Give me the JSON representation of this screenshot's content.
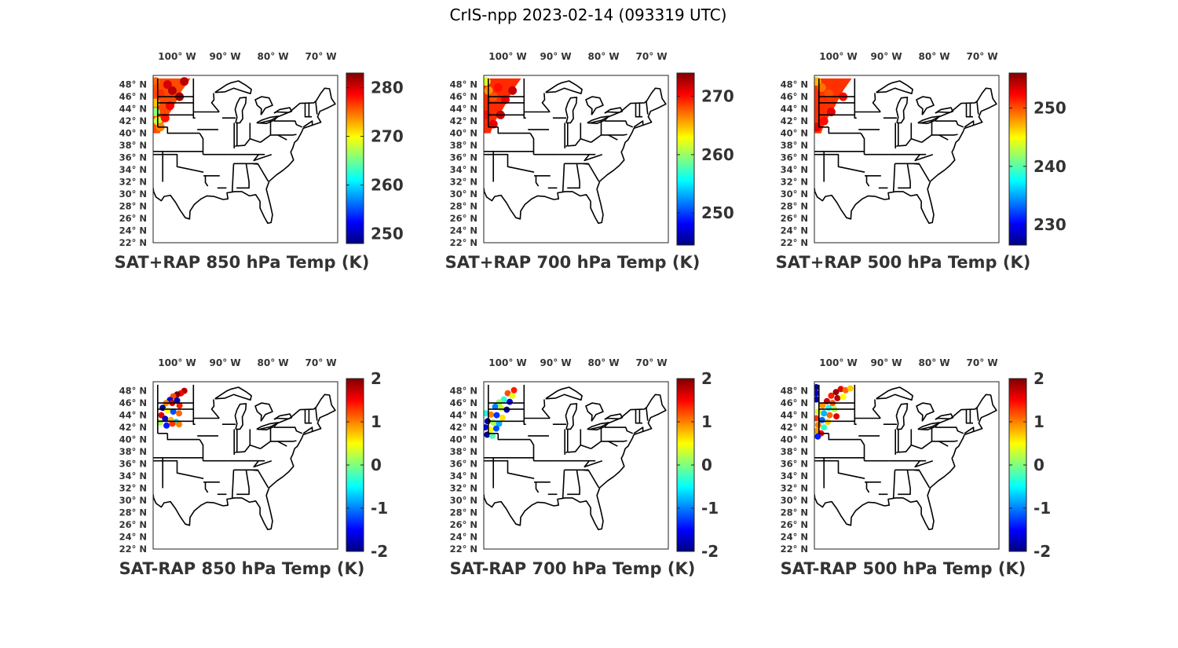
{
  "figure": {
    "title": "CrIS-npp 2023-02-14 (093319 UTC)"
  },
  "chart_data": [
    {
      "type": "scatter",
      "title": "SAT+RAP 850 hPa Temp (K)",
      "x_ticks": [
        "100° W",
        "90° W",
        "80° W",
        "70° W"
      ],
      "y_ticks": [
        "48° N",
        "46° N",
        "44° N",
        "42° N",
        "40° N",
        "38° N",
        "36° N",
        "34° N",
        "32° N",
        "30° N",
        "28° N",
        "26° N",
        "24° N",
        "22° N"
      ],
      "colorbar": {
        "range": [
          248,
          283
        ],
        "ticks": [
          250,
          260,
          270,
          280
        ]
      },
      "colormap": "jet",
      "data_region": {
        "lon": [
          -105,
          -96
        ],
        "lat": [
          40,
          49
        ]
      },
      "observations": [
        {
          "lon": -104.5,
          "lat": 48.5,
          "value": 275
        },
        {
          "lon": -104,
          "lat": 47.5,
          "value": 276
        },
        {
          "lon": -103.5,
          "lat": 46.5,
          "value": 277
        },
        {
          "lon": -104.5,
          "lat": 45,
          "value": 272
        },
        {
          "lon": -104.5,
          "lat": 43.5,
          "value": 266
        },
        {
          "lon": -104,
          "lat": 42,
          "value": 268
        },
        {
          "lon": -103.5,
          "lat": 41,
          "value": 274
        },
        {
          "lon": -102,
          "lat": 48,
          "value": 280
        },
        {
          "lon": -101,
          "lat": 47,
          "value": 281
        },
        {
          "lon": -99.5,
          "lat": 46,
          "value": 282
        },
        {
          "lon": -98.5,
          "lat": 48.5,
          "value": 281
        },
        {
          "lon": -101.5,
          "lat": 44.5,
          "value": 279
        },
        {
          "lon": -102.5,
          "lat": 42.5,
          "value": 278
        }
      ]
    },
    {
      "type": "scatter",
      "title": "SAT+RAP 700 hPa Temp (K)",
      "x_ticks": [
        "100° W",
        "90° W",
        "80° W",
        "70° W"
      ],
      "y_ticks": [
        "48° N",
        "46° N",
        "44° N",
        "42° N",
        "40° N",
        "38° N",
        "36° N",
        "34° N",
        "32° N",
        "30° N",
        "28° N",
        "26° N",
        "24° N",
        "22° N"
      ],
      "colorbar": {
        "range": [
          244.5,
          274
        ],
        "ticks": [
          250,
          260,
          270
        ]
      },
      "colormap": "jet",
      "data_region": {
        "lon": [
          -105,
          -96
        ],
        "lat": [
          40,
          49
        ]
      },
      "observations": [
        {
          "lon": -104.5,
          "lat": 48.5,
          "value": 262
        },
        {
          "lon": -104,
          "lat": 47,
          "value": 266
        },
        {
          "lon": -103,
          "lat": 46,
          "value": 268
        },
        {
          "lon": -102,
          "lat": 47.5,
          "value": 270
        },
        {
          "lon": -100.5,
          "lat": 45.5,
          "value": 271
        },
        {
          "lon": -99,
          "lat": 47,
          "value": 272
        },
        {
          "lon": -104.5,
          "lat": 43,
          "value": 270
        },
        {
          "lon": -103,
          "lat": 41.5,
          "value": 271
        },
        {
          "lon": -101.5,
          "lat": 43,
          "value": 272
        }
      ]
    },
    {
      "type": "scatter",
      "title": "SAT+RAP 500 hPa Temp (K)",
      "x_ticks": [
        "100° W",
        "90° W",
        "80° W",
        "70° W"
      ],
      "y_ticks": [
        "48° N",
        "46° N",
        "44° N",
        "42° N",
        "40° N",
        "38° N",
        "36° N",
        "34° N",
        "32° N",
        "30° N",
        "28° N",
        "26° N",
        "24° N",
        "22° N"
      ],
      "colorbar": {
        "range": [
          226.5,
          256
        ],
        "ticks": [
          230,
          240,
          250
        ]
      },
      "colormap": "jet",
      "data_region": {
        "lon": [
          -105,
          -96
        ],
        "lat": [
          40,
          49
        ]
      },
      "observations": [
        {
          "lon": -104.5,
          "lat": 48.5,
          "value": 247
        },
        {
          "lon": -103.5,
          "lat": 47.5,
          "value": 249
        },
        {
          "lon": -102,
          "lat": 46.5,
          "value": 250
        },
        {
          "lon": -100.5,
          "lat": 47.5,
          "value": 251
        },
        {
          "lon": -99,
          "lat": 46,
          "value": 252
        },
        {
          "lon": -104,
          "lat": 44,
          "value": 251
        },
        {
          "lon": -103,
          "lat": 42,
          "value": 252
        },
        {
          "lon": -101.5,
          "lat": 43.5,
          "value": 253
        },
        {
          "lon": -104.5,
          "lat": 41,
          "value": 253
        }
      ]
    },
    {
      "type": "scatter",
      "title": "SAT-RAP 850 hPa Temp (K)",
      "x_ticks": [
        "100° W",
        "90° W",
        "80° W",
        "70° W"
      ],
      "y_ticks": [
        "48° N",
        "46° N",
        "44° N",
        "42° N",
        "40° N",
        "38° N",
        "36° N",
        "34° N",
        "32° N",
        "30° N",
        "28° N",
        "26° N",
        "24° N",
        "22° N"
      ],
      "colorbar": {
        "range": [
          -2,
          2
        ],
        "ticks": [
          -2,
          -1,
          0,
          1,
          2
        ]
      },
      "colormap": "jet",
      "observations": [
        {
          "lon": -98.5,
          "lat": 48,
          "value": 1.8
        },
        {
          "lon": -99.2,
          "lat": 47.6,
          "value": 1.5
        },
        {
          "lon": -100,
          "lat": 47.4,
          "value": 2.0
        },
        {
          "lon": -100.8,
          "lat": 47.1,
          "value": 1.2
        },
        {
          "lon": -101.5,
          "lat": 46.5,
          "value": -1.6
        },
        {
          "lon": -102.3,
          "lat": 46,
          "value": 1.0
        },
        {
          "lon": -101,
          "lat": 46,
          "value": 1.7
        },
        {
          "lon": -100,
          "lat": 46.4,
          "value": -1.8
        },
        {
          "lon": -99.5,
          "lat": 45.6,
          "value": 1.4
        },
        {
          "lon": -103,
          "lat": 45.2,
          "value": -1.9
        },
        {
          "lon": -102,
          "lat": 44.8,
          "value": 0.5
        },
        {
          "lon": -100.8,
          "lat": 44.6,
          "value": -1.2
        },
        {
          "lon": -99.6,
          "lat": 44.3,
          "value": 1.1
        },
        {
          "lon": -103.3,
          "lat": 44,
          "value": 1.6
        },
        {
          "lon": -102.5,
          "lat": 43.4,
          "value": -1.7
        },
        {
          "lon": -101.3,
          "lat": 43.2,
          "value": 0.8
        },
        {
          "lon": -100.2,
          "lat": 42.9,
          "value": -0.6
        },
        {
          "lon": -102.2,
          "lat": 42.3,
          "value": -1.4
        },
        {
          "lon": -101,
          "lat": 42.6,
          "value": 1.3
        },
        {
          "lon": -99.6,
          "lat": 42.5,
          "value": 1.0
        },
        {
          "lon": -103.6,
          "lat": 42.8,
          "value": 0.2
        }
      ]
    },
    {
      "type": "scatter",
      "title": "SAT-RAP 700 hPa Temp (K)",
      "x_ticks": [
        "100° W",
        "90° W",
        "80° W",
        "70° W"
      ],
      "y_ticks": [
        "48° N",
        "46° N",
        "44° N",
        "42° N",
        "40° N",
        "38° N",
        "36° N",
        "34° N",
        "32° N",
        "30° N",
        "28° N",
        "26° N",
        "24° N",
        "22° N"
      ],
      "colorbar": {
        "range": [
          -2,
          2
        ],
        "ticks": [
          -2,
          -1,
          0,
          1,
          2
        ]
      },
      "colormap": "jet",
      "observations": [
        {
          "lon": -100,
          "lat": 47.6,
          "value": 1.2
        },
        {
          "lon": -99,
          "lat": 47.2,
          "value": 0.4
        },
        {
          "lon": -100.8,
          "lat": 46.6,
          "value": -0.3
        },
        {
          "lon": -101.8,
          "lat": 46.1,
          "value": 0.1
        },
        {
          "lon": -99.6,
          "lat": 46.2,
          "value": -1.5
        },
        {
          "lon": -102.6,
          "lat": 45.4,
          "value": -1.0
        },
        {
          "lon": -101.4,
          "lat": 45.2,
          "value": 0.3
        },
        {
          "lon": -100.2,
          "lat": 44.9,
          "value": -1.8
        },
        {
          "lon": -104.6,
          "lat": 44.3,
          "value": -0.4
        },
        {
          "lon": -103.5,
          "lat": 44.1,
          "value": 1.0
        },
        {
          "lon": -102.3,
          "lat": 44,
          "value": -1.3
        },
        {
          "lon": -101.1,
          "lat": 43.6,
          "value": 0.6
        },
        {
          "lon": -104.2,
          "lat": 43,
          "value": -1.9
        },
        {
          "lon": -103,
          "lat": 42.8,
          "value": 0.2
        },
        {
          "lon": -101.8,
          "lat": 42.6,
          "value": -0.8
        },
        {
          "lon": -104.7,
          "lat": 42,
          "value": -1.6
        },
        {
          "lon": -103.6,
          "lat": 41.6,
          "value": 0.5
        },
        {
          "lon": -102.4,
          "lat": 41.8,
          "value": -1.2
        },
        {
          "lon": -104.3,
          "lat": 40.8,
          "value": -1.9
        },
        {
          "lon": -103.2,
          "lat": 40.6,
          "value": -0.2
        },
        {
          "lon": -98.7,
          "lat": 48.1,
          "value": 1.4
        }
      ]
    },
    {
      "type": "scatter",
      "title": "SAT-RAP 500 hPa Temp (K)",
      "x_ticks": [
        "100° W",
        "90° W",
        "80° W",
        "70° W"
      ],
      "y_ticks": [
        "48° N",
        "46° N",
        "44° N",
        "42° N",
        "40° N",
        "38° N",
        "36° N",
        "34° N",
        "32° N",
        "30° N",
        "28° N",
        "26° N",
        "24° N",
        "22° N"
      ],
      "colorbar": {
        "range": [
          -2,
          2
        ],
        "ticks": [
          -2,
          -1,
          0,
          1,
          2
        ]
      },
      "colormap": "jet",
      "observations": [
        {
          "lon": -104.6,
          "lat": 48.6,
          "value": -1.9
        },
        {
          "lon": -104.6,
          "lat": 47.6,
          "value": -1.7
        },
        {
          "lon": -104.6,
          "lat": 46.6,
          "value": -1.8
        },
        {
          "lon": -99.5,
          "lat": 48.3,
          "value": 1.6
        },
        {
          "lon": -98.5,
          "lat": 48.1,
          "value": 1.1
        },
        {
          "lon": -97.5,
          "lat": 48.4,
          "value": 0.7
        },
        {
          "lon": -100.5,
          "lat": 47.8,
          "value": 1.9
        },
        {
          "lon": -101.5,
          "lat": 47.2,
          "value": 1.4
        },
        {
          "lon": -100.2,
          "lat": 46.8,
          "value": 1.8
        },
        {
          "lon": -99,
          "lat": 47,
          "value": 0.5
        },
        {
          "lon": -102.4,
          "lat": 46.3,
          "value": 1.7
        },
        {
          "lon": -101.2,
          "lat": 46,
          "value": 1.2
        },
        {
          "lon": -103.3,
          "lat": 45.6,
          "value": 0.9
        },
        {
          "lon": -102,
          "lat": 45.2,
          "value": -0.4
        },
        {
          "lon": -100.8,
          "lat": 45,
          "value": 0.2
        },
        {
          "lon": -104.2,
          "lat": 44.6,
          "value": 0.4
        },
        {
          "lon": -103,
          "lat": 44.3,
          "value": -0.8
        },
        {
          "lon": -101.8,
          "lat": 44,
          "value": 1.1
        },
        {
          "lon": -104.6,
          "lat": 43.5,
          "value": 1.3
        },
        {
          "lon": -103.4,
          "lat": 43.2,
          "value": -1.1
        },
        {
          "lon": -102.2,
          "lat": 42.9,
          "value": 0.7
        },
        {
          "lon": -104.2,
          "lat": 42.4,
          "value": 1.0
        },
        {
          "lon": -103,
          "lat": 42,
          "value": -0.3
        },
        {
          "lon": -104.6,
          "lat": 41.4,
          "value": 0.9
        },
        {
          "lon": -103.6,
          "lat": 41,
          "value": 1.5
        },
        {
          "lon": -104.3,
          "lat": 40.5,
          "value": -1.4
        },
        {
          "lon": -100.4,
          "lat": 43.8,
          "value": 1.6
        }
      ]
    }
  ]
}
